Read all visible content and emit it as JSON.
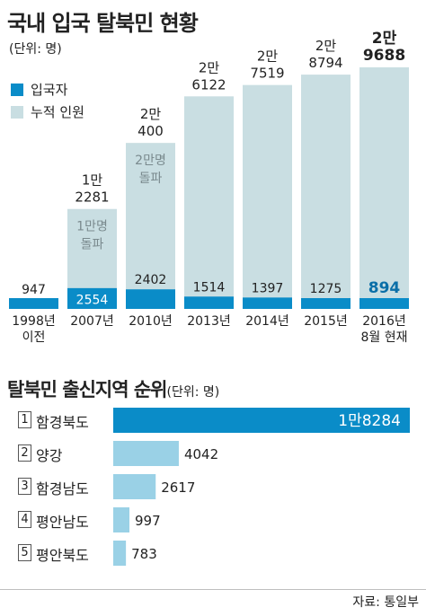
{
  "colors": {
    "entry": "#0a8cc8",
    "cumulative": "#c9dee2",
    "region_top": "#0a8cc8",
    "region_other": "#9ad1e6",
    "milestone_text": "#7a8a8e",
    "highlight_text": "#0a6fa8"
  },
  "chart1": {
    "title": "국내 입국 탈북민 현황",
    "unit": "(단위: 명)",
    "legend": {
      "entry": "입국자",
      "cumulative": "누적 인원"
    }
  },
  "chart2": {
    "title": "탈북민 출신지역 순위",
    "unit": "(단위: 명)"
  },
  "source": "자료: 통일부",
  "chart_data": [
    {
      "type": "bar",
      "title": "국내 입국 탈북민 현황",
      "unit": "(단위: 명)",
      "categories": [
        [
          "1998년",
          "이전"
        ],
        [
          "2007년"
        ],
        [
          "2010년"
        ],
        [
          "2013년"
        ],
        [
          "2014년"
        ],
        [
          "2015년"
        ],
        [
          "2016년",
          "8월 현재"
        ]
      ],
      "series": [
        {
          "name": "입국자",
          "values": [
            947,
            2554,
            2402,
            1514,
            1397,
            1275,
            894
          ],
          "labels": [
            "947",
            "2554",
            "2402",
            "1514",
            "1397",
            "1275",
            "894"
          ]
        },
        {
          "name": "누적 인원",
          "values": [
            947,
            12281,
            20400,
            26122,
            27519,
            28794,
            29688
          ],
          "labels": [
            [],
            [
              "1만",
              "2281"
            ],
            [
              "2만",
              "400"
            ],
            [
              "2만",
              "6122"
            ],
            [
              "2만",
              "7519"
            ],
            [
              "2만",
              "8794"
            ],
            [
              "2만",
              "9688"
            ]
          ]
        }
      ],
      "annotations": [
        {
          "category_index": 1,
          "lines": [
            "1만명",
            "돌파"
          ]
        },
        {
          "category_index": 2,
          "lines": [
            "2만명",
            "돌파"
          ]
        }
      ],
      "grid": false,
      "legend_position": "top-left"
    },
    {
      "type": "bar",
      "orientation": "horizontal",
      "title": "탈북민 출신지역 순위",
      "unit": "(단위: 명)",
      "categories": [
        "함경북도",
        "양강",
        "함경남도",
        "평안남도",
        "평안북도"
      ],
      "ranks": [
        "1",
        "2",
        "3",
        "4",
        "5"
      ],
      "values": [
        18284,
        4042,
        2617,
        997,
        783
      ],
      "labels": [
        "1만8284",
        "4042",
        "2617",
        "997",
        "783"
      ],
      "grid": false
    }
  ]
}
